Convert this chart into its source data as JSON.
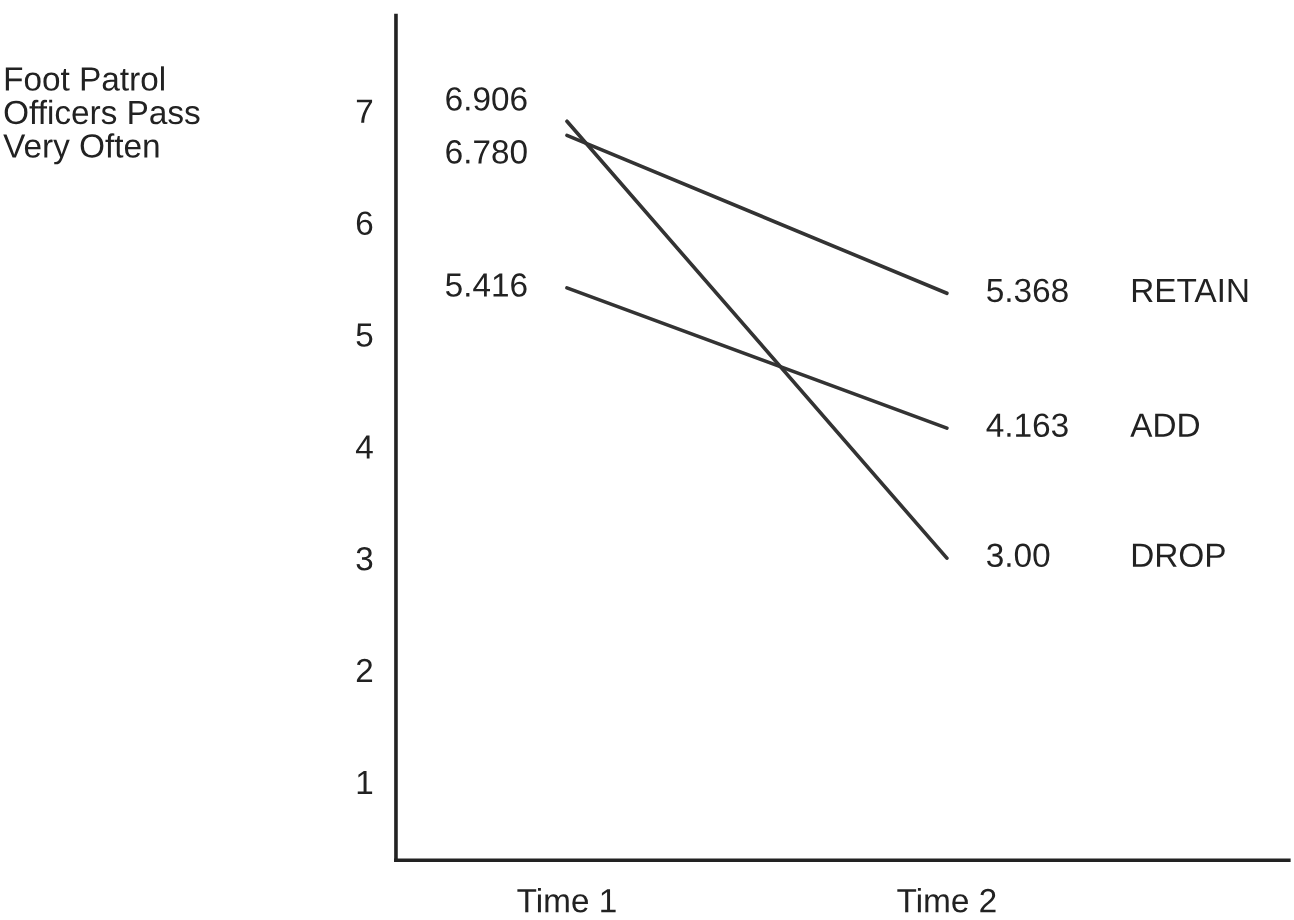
{
  "chart_data": {
    "type": "line",
    "ylabel": "Foot Patrol\nOfficers Pass\nVery Often",
    "categories": [
      "Time 1",
      "Time 2"
    ],
    "series": [
      {
        "name": "RETAIN",
        "color": "#333333",
        "values": [
          6.78,
          5.368
        ],
        "value_labels": [
          "6.780",
          "5.368"
        ]
      },
      {
        "name": "ADD",
        "color": "#333333",
        "values": [
          5.416,
          4.163
        ],
        "value_labels": [
          "5.416",
          "4.163"
        ]
      },
      {
        "name": "DROP",
        "color": "#333333",
        "values": [
          6.906,
          3.0
        ],
        "value_labels": [
          "6.906",
          "3.00"
        ]
      }
    ],
    "data_labels": true,
    "ylim": [
      0.3,
      7.85
    ],
    "yticks": [
      1,
      2,
      3,
      4,
      5,
      6,
      7
    ],
    "grid": false,
    "legend": false,
    "marker": "none",
    "line_style": "solid"
  }
}
